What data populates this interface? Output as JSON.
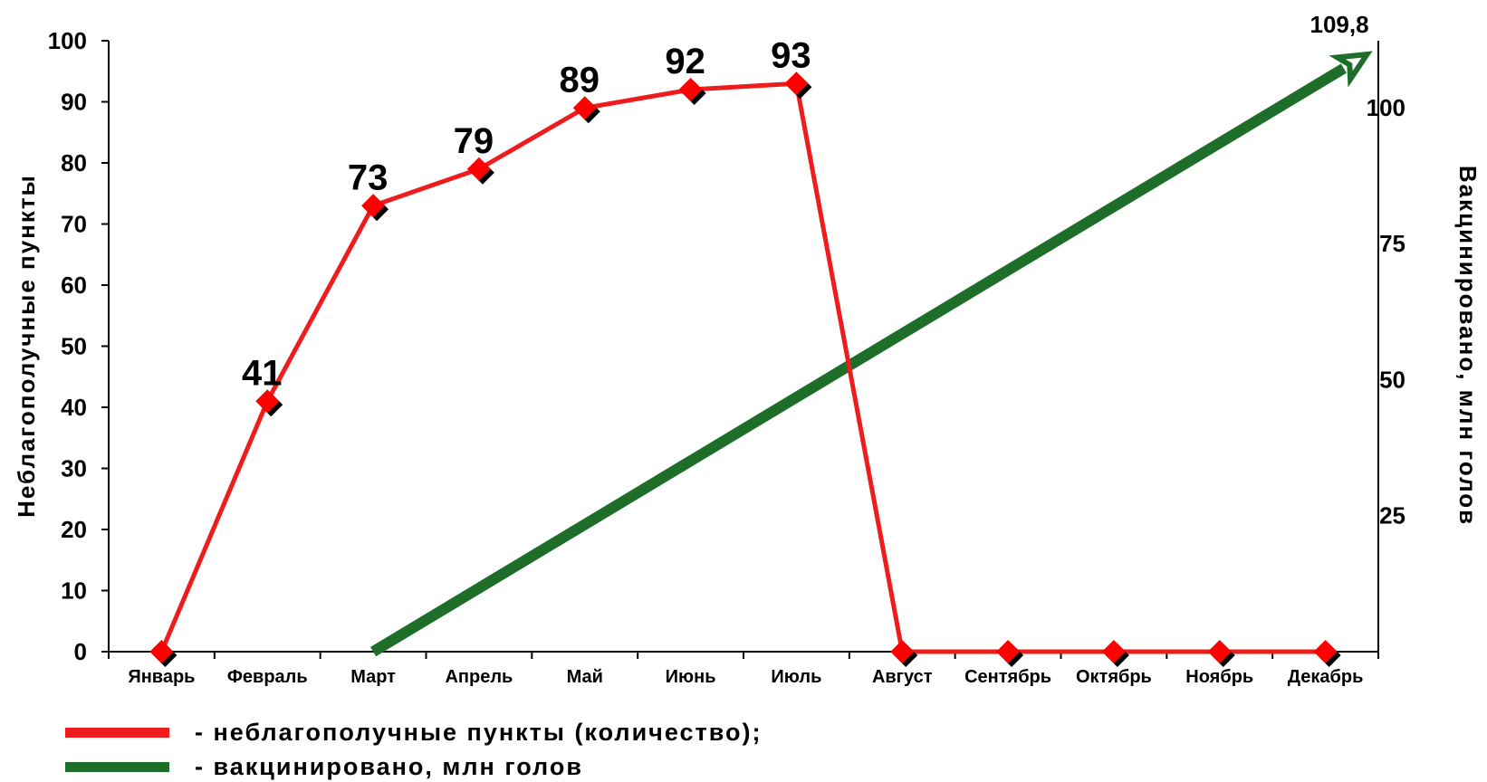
{
  "chart_data": {
    "type": "line",
    "categories": [
      "Январь",
      "Февраль",
      "Март",
      "Апрель",
      "Май",
      "Июнь",
      "Июль",
      "Август",
      "Сентябрь",
      "Октябрь",
      "Ноябрь",
      "Декабрь"
    ],
    "series": [
      {
        "name": "- неблагополучные пункты (количество);",
        "axis": "left",
        "color": "#ee1c1c",
        "values": [
          0,
          41,
          73,
          79,
          89,
          92,
          93,
          0,
          0,
          0,
          0,
          0
        ],
        "data_labels": [
          "",
          "41",
          "73",
          "79",
          "89",
          "92",
          "93",
          "",
          "",
          "",
          "",
          ""
        ]
      },
      {
        "name": "- вакцинировано, млн голов",
        "axis": "right",
        "color": "#1e6e2a",
        "style": "arrow",
        "start": {
          "category": "Март",
          "value": 0
        },
        "end": {
          "category": "Декабрь",
          "value": 109.8
        },
        "end_label": "109,8"
      }
    ],
    "ylabel": "Неблагополучные пункты",
    "ylim": [
      0,
      100
    ],
    "yticks": [
      0,
      10,
      20,
      30,
      40,
      50,
      60,
      70,
      80,
      90,
      100
    ],
    "y2label": "Вакцинировано, млн голов",
    "y2lim": [
      0,
      109.8
    ],
    "y2ticks": [
      25,
      50,
      75,
      100
    ],
    "grid": false,
    "legend_position": "bottom-left"
  }
}
